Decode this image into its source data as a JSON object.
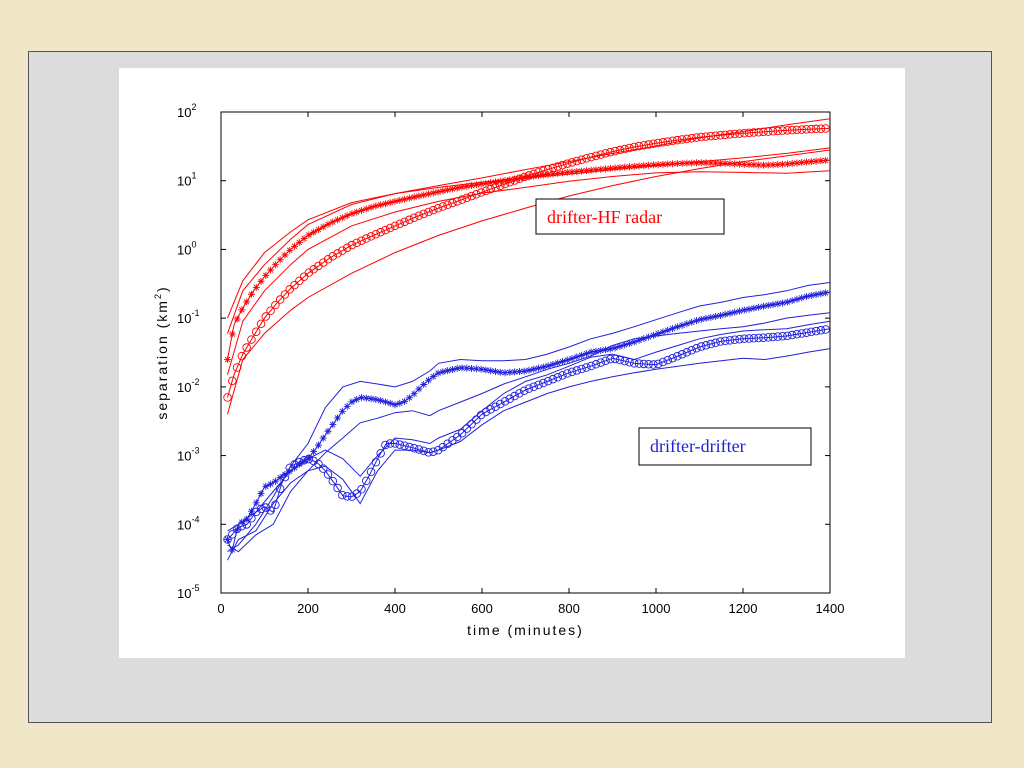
{
  "colors": {
    "red": "#ff0000",
    "blue": "#2020dd",
    "background": "#f0e6c8",
    "frame": "#dcdcdc"
  },
  "chart_data": {
    "type": "line",
    "title": "",
    "xlabel": "time (minutes)",
    "ylabel_main": "separation (km",
    "ylabel_sup": "2",
    "ylabel_close": ")",
    "xlim": [
      0,
      1400
    ],
    "ylim": [
      1e-05,
      100
    ],
    "yscale": "log",
    "grid": false,
    "x_ticks": [
      "0",
      "200",
      "400",
      "600",
      "800",
      "1000",
      "1200",
      "1400"
    ],
    "y_ticks": [
      {
        "base": "10",
        "exp": "-5"
      },
      {
        "base": "10",
        "exp": "-4"
      },
      {
        "base": "10",
        "exp": "-3"
      },
      {
        "base": "10",
        "exp": "-2"
      },
      {
        "base": "10",
        "exp": "-1"
      },
      {
        "base": "10",
        "exp": "0"
      },
      {
        "base": "10",
        "exp": "1"
      },
      {
        "base": "10",
        "exp": "2"
      }
    ],
    "legend": [
      {
        "label": "drifter-HF radar",
        "color": "#ff0000"
      },
      {
        "label": "drifter-drifter",
        "color": "#2020dd"
      }
    ],
    "series": [
      {
        "group": "drifter-HF radar",
        "marker": "star",
        "color": "#ff0000",
        "x": [
          15,
          30,
          50,
          75,
          100,
          130,
          160,
          200,
          250,
          300,
          350,
          400,
          450,
          500,
          550,
          600,
          650,
          700,
          750,
          800,
          850,
          900,
          950,
          1000,
          1050,
          1100,
          1150,
          1200,
          1250,
          1300,
          1350,
          1400
        ],
        "y": [
          0.025,
          0.08,
          0.14,
          0.25,
          0.4,
          0.65,
          1.0,
          1.6,
          2.4,
          3.3,
          4.2,
          5.0,
          5.9,
          6.9,
          8.0,
          9.0,
          10.0,
          11.2,
          12.3,
          13.3,
          14.2,
          15.2,
          16.2,
          17.1,
          17.8,
          18.3,
          18.0,
          17.3,
          16.8,
          17.5,
          18.8,
          20.0
        ]
      },
      {
        "group": "drifter-HF radar",
        "marker": "circle",
        "color": "#ff0000",
        "x": [
          15,
          30,
          50,
          75,
          100,
          130,
          160,
          200,
          250,
          300,
          350,
          400,
          450,
          500,
          550,
          600,
          650,
          700,
          750,
          800,
          850,
          900,
          950,
          1000,
          1050,
          1100,
          1150,
          1200,
          1250,
          1300,
          1350,
          1400
        ],
        "y": [
          0.007,
          0.015,
          0.03,
          0.055,
          0.1,
          0.17,
          0.27,
          0.45,
          0.75,
          1.15,
          1.6,
          2.2,
          3.0,
          4.0,
          5.2,
          6.8,
          8.8,
          11.5,
          14.5,
          18.0,
          22.0,
          26.5,
          31.0,
          35.0,
          39.0,
          43.0,
          46.0,
          49.0,
          51.5,
          54.0,
          56.0,
          58.0
        ]
      },
      {
        "group": "drifter-HF radar",
        "marker": "none",
        "color": "#ff0000",
        "x": [
          15,
          50,
          100,
          160,
          200,
          300,
          400,
          500,
          600,
          700,
          800,
          900,
          1000,
          1100,
          1200,
          1300,
          1400
        ],
        "y": [
          0.06,
          0.25,
          0.6,
          1.4,
          2.3,
          4.5,
          6.5,
          8.5,
          11.0,
          14.5,
          19.0,
          25.0,
          32.0,
          42.0,
          52.0,
          65.0,
          80.0
        ]
      },
      {
        "group": "drifter-HF radar",
        "marker": "none",
        "color": "#ff0000",
        "x": [
          15,
          50,
          100,
          160,
          200,
          300,
          400,
          500,
          600,
          700,
          800,
          900,
          1000,
          1100,
          1200,
          1300,
          1400
        ],
        "y": [
          0.015,
          0.09,
          0.25,
          0.6,
          1.0,
          2.2,
          3.5,
          5.0,
          6.6,
          8.0,
          9.8,
          11.5,
          13.0,
          13.5,
          13.2,
          12.8,
          14.0
        ]
      },
      {
        "group": "drifter-HF radar",
        "marker": "none",
        "color": "#ff0000",
        "x": [
          15,
          50,
          100,
          160,
          200,
          300,
          400,
          500,
          600,
          700,
          800,
          900,
          1000,
          1100,
          1200,
          1300,
          1400
        ],
        "y": [
          0.004,
          0.025,
          0.06,
          0.13,
          0.2,
          0.45,
          0.9,
          1.6,
          2.6,
          4.0,
          6.0,
          8.5,
          11.5,
          15.0,
          19.0,
          23.0,
          28.0
        ]
      },
      {
        "group": "drifter-HF radar",
        "marker": "none",
        "color": "#ff0000",
        "x": [
          15,
          50,
          100,
          160,
          200,
          300,
          400,
          500,
          600,
          700,
          800,
          900,
          1000,
          1100,
          1200,
          1300,
          1400
        ],
        "y": [
          0.1,
          0.35,
          0.9,
          1.8,
          2.7,
          4.8,
          6.5,
          8.0,
          9.5,
          11.0,
          12.5,
          14.5,
          16.5,
          19.0,
          21.5,
          25.0,
          30.0
        ]
      },
      {
        "group": "drifter-drifter",
        "marker": "star",
        "color": "#2020dd",
        "x": [
          15,
          25,
          40,
          60,
          80,
          100,
          120,
          140,
          160,
          180,
          200,
          220,
          240,
          260,
          280,
          300,
          320,
          340,
          360,
          380,
          400,
          420,
          440,
          460,
          480,
          500,
          550,
          600,
          650,
          700,
          750,
          800,
          850,
          900,
          950,
          1000,
          1050,
          1100,
          1150,
          1200,
          1250,
          1300,
          1350,
          1400
        ],
        "y": [
          6e-05,
          4e-05,
          0.0001,
          0.00012,
          0.0002,
          0.00035,
          0.0004,
          0.0005,
          0.0006,
          0.00075,
          0.0009,
          0.0013,
          0.002,
          0.003,
          0.0045,
          0.006,
          0.007,
          0.0068,
          0.0065,
          0.006,
          0.0055,
          0.006,
          0.0075,
          0.01,
          0.013,
          0.016,
          0.019,
          0.018,
          0.016,
          0.017,
          0.02,
          0.025,
          0.032,
          0.036,
          0.045,
          0.058,
          0.075,
          0.095,
          0.11,
          0.13,
          0.15,
          0.17,
          0.21,
          0.24
        ]
      },
      {
        "group": "drifter-drifter",
        "marker": "circle",
        "color": "#2020dd",
        "x": [
          15,
          25,
          40,
          60,
          80,
          100,
          120,
          140,
          160,
          180,
          200,
          220,
          240,
          260,
          280,
          300,
          320,
          340,
          360,
          380,
          400,
          420,
          440,
          460,
          480,
          500,
          550,
          600,
          650,
          700,
          750,
          800,
          850,
          900,
          950,
          1000,
          1050,
          1100,
          1150,
          1200,
          1250,
          1300,
          1350,
          1400
        ],
        "y": [
          6e-05,
          7e-05,
          9e-05,
          0.0001,
          0.00015,
          0.00018,
          0.00015,
          0.0004,
          0.0007,
          0.0008,
          0.0009,
          0.0008,
          0.0006,
          0.0004,
          0.00026,
          0.00025,
          0.0003,
          0.0005,
          0.0009,
          0.0015,
          0.0015,
          0.0014,
          0.0013,
          0.0012,
          0.0011,
          0.0012,
          0.002,
          0.004,
          0.006,
          0.009,
          0.012,
          0.016,
          0.02,
          0.026,
          0.022,
          0.021,
          0.028,
          0.038,
          0.046,
          0.05,
          0.052,
          0.055,
          0.062,
          0.07
        ]
      },
      {
        "group": "drifter-drifter",
        "marker": "none",
        "color": "#2020dd",
        "x": [
          15,
          40,
          80,
          120,
          160,
          200,
          240,
          280,
          320,
          360,
          400,
          440,
          480,
          500,
          550,
          600,
          650,
          700,
          750,
          800,
          850,
          900,
          950,
          1000,
          1050,
          1100,
          1150,
          1200,
          1250,
          1300,
          1350,
          1400
        ],
        "y": [
          4e-05,
          5e-05,
          0.0001,
          0.00025,
          0.0007,
          0.0015,
          0.005,
          0.01,
          0.012,
          0.011,
          0.01,
          0.012,
          0.017,
          0.022,
          0.025,
          0.024,
          0.024,
          0.025,
          0.03,
          0.038,
          0.05,
          0.06,
          0.075,
          0.095,
          0.12,
          0.15,
          0.17,
          0.2,
          0.22,
          0.25,
          0.3,
          0.33
        ]
      },
      {
        "group": "drifter-drifter",
        "marker": "none",
        "color": "#2020dd",
        "x": [
          15,
          40,
          80,
          120,
          160,
          200,
          240,
          280,
          320,
          360,
          400,
          440,
          480,
          500,
          550,
          600,
          650,
          700,
          750,
          800,
          850,
          900,
          950,
          1000,
          1050,
          1100,
          1150,
          1200,
          1250,
          1300,
          1350,
          1400
        ],
        "y": [
          3e-05,
          6e-05,
          8e-05,
          0.0002,
          0.0004,
          0.0006,
          0.0011,
          0.0018,
          0.003,
          0.0035,
          0.0042,
          0.0045,
          0.0038,
          0.0045,
          0.006,
          0.008,
          0.011,
          0.014,
          0.018,
          0.022,
          0.028,
          0.04,
          0.05,
          0.055,
          0.06,
          0.065,
          0.07,
          0.075,
          0.085,
          0.1,
          0.11,
          0.12
        ]
      },
      {
        "group": "drifter-drifter",
        "marker": "none",
        "color": "#2020dd",
        "x": [
          15,
          40,
          80,
          120,
          160,
          200,
          240,
          280,
          320,
          360,
          400,
          440,
          480,
          500,
          550,
          600,
          650,
          700,
          750,
          800,
          850,
          900,
          950,
          1000,
          1050,
          1100,
          1150,
          1200,
          1250,
          1300,
          1350,
          1400
        ],
        "y": [
          8e-05,
          0.0001,
          0.00015,
          0.0003,
          0.0006,
          0.0009,
          0.0012,
          0.0009,
          0.0005,
          0.001,
          0.0018,
          0.0017,
          0.0015,
          0.0018,
          0.0024,
          0.0045,
          0.008,
          0.012,
          0.015,
          0.02,
          0.027,
          0.03,
          0.025,
          0.032,
          0.04,
          0.05,
          0.058,
          0.065,
          0.068,
          0.07,
          0.08,
          0.09
        ]
      },
      {
        "group": "drifter-drifter",
        "marker": "none",
        "color": "#2020dd",
        "x": [
          15,
          40,
          80,
          120,
          160,
          200,
          240,
          280,
          320,
          360,
          400,
          440,
          480,
          500,
          550,
          600,
          650,
          700,
          750,
          800,
          850,
          900,
          950,
          1000,
          1050,
          1100,
          1150,
          1200,
          1250,
          1300,
          1350,
          1400
        ],
        "y": [
          5e-05,
          4e-05,
          7e-05,
          0.0001,
          0.0003,
          0.0006,
          0.0007,
          0.00045,
          0.0002,
          0.0006,
          0.0012,
          0.0012,
          0.0011,
          0.0012,
          0.0016,
          0.0028,
          0.0045,
          0.006,
          0.008,
          0.01,
          0.012,
          0.014,
          0.016,
          0.018,
          0.02,
          0.022,
          0.024,
          0.026,
          0.025,
          0.028,
          0.032,
          0.036
        ]
      }
    ]
  }
}
